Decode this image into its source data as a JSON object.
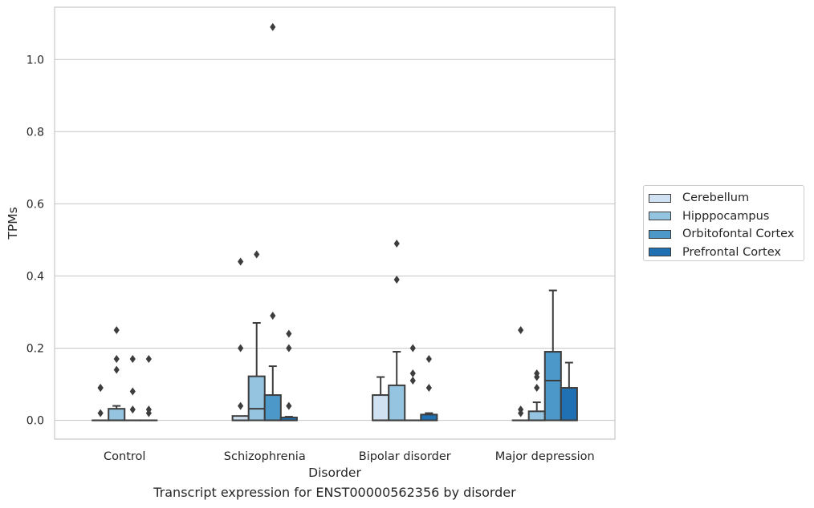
{
  "chart_data": {
    "type": "box",
    "title": "",
    "caption": "Transcript expression for ENST00000562356 by disorder",
    "xlabel": "Disorder",
    "ylabel": "TPMs",
    "ylim": [
      -0.052,
      1.145
    ],
    "yticks": [
      0.0,
      0.2,
      0.4,
      0.6,
      0.8,
      1.0
    ],
    "ytick_labels": [
      "0.0",
      "0.2",
      "0.4",
      "0.6",
      "0.8",
      "1.0"
    ],
    "grid": "horizontal",
    "legend_position": "right",
    "categories": [
      "Control",
      "Schizophrenia",
      "Bipolar disorder",
      "Major depression"
    ],
    "series": [
      {
        "name": "Cerebellum",
        "color": "#d0e1f2",
        "boxes": [
          {
            "q1": 0.0,
            "median": 0.0,
            "q3": 0.0,
            "whisker_low": 0.0,
            "whisker_high": 0.0,
            "outliers": [
              0.02,
              0.09,
              0.09
            ]
          },
          {
            "q1": 0.0,
            "median": 0.0,
            "q3": 0.012,
            "whisker_low": 0.0,
            "whisker_high": 0.012,
            "outliers": [
              0.04,
              0.2,
              0.44
            ]
          },
          {
            "q1": 0.0,
            "median": 0.0,
            "q3": 0.07,
            "whisker_low": 0.0,
            "whisker_high": 0.12,
            "outliers": []
          },
          {
            "q1": 0.0,
            "median": 0.0,
            "q3": 0.0,
            "whisker_low": 0.0,
            "whisker_high": 0.0,
            "outliers": [
              0.02,
              0.03,
              0.25
            ]
          }
        ]
      },
      {
        "name": "Hipppocampus",
        "color": "#94c4df",
        "boxes": [
          {
            "q1": 0.0,
            "median": 0.0,
            "q3": 0.032,
            "whisker_low": 0.0,
            "whisker_high": 0.04,
            "outliers": [
              0.14,
              0.17,
              0.25
            ]
          },
          {
            "q1": 0.0,
            "median": 0.032,
            "q3": 0.122,
            "whisker_low": 0.0,
            "whisker_high": 0.27,
            "outliers": [
              0.46
            ]
          },
          {
            "q1": 0.0,
            "median": 0.0,
            "q3": 0.097,
            "whisker_low": 0.0,
            "whisker_high": 0.19,
            "outliers": [
              0.39,
              0.49
            ]
          },
          {
            "q1": 0.0,
            "median": 0.0,
            "q3": 0.025,
            "whisker_low": 0.0,
            "whisker_high": 0.05,
            "outliers": [
              0.09,
              0.12,
              0.13
            ]
          }
        ]
      },
      {
        "name": "Orbitofontal Cortex",
        "color": "#4b98c9",
        "boxes": [
          {
            "q1": 0.0,
            "median": 0.0,
            "q3": 0.0,
            "whisker_low": 0.0,
            "whisker_high": 0.0,
            "outliers": [
              0.03,
              0.08,
              0.17
            ]
          },
          {
            "q1": 0.0,
            "median": 0.0,
            "q3": 0.07,
            "whisker_low": 0.0,
            "whisker_high": 0.15,
            "outliers": [
              0.29,
              1.09
            ]
          },
          {
            "q1": 0.0,
            "median": 0.0,
            "q3": 0.0,
            "whisker_low": 0.0,
            "whisker_high": 0.0,
            "outliers": [
              0.11,
              0.13,
              0.2
            ]
          },
          {
            "q1": 0.0,
            "median": 0.11,
            "q3": 0.19,
            "whisker_low": 0.0,
            "whisker_high": 0.36,
            "outliers": []
          }
        ]
      },
      {
        "name": "Prefrontal Cortex",
        "color": "#2070b4",
        "boxes": [
          {
            "q1": 0.0,
            "median": 0.0,
            "q3": 0.0,
            "whisker_low": 0.0,
            "whisker_high": 0.0,
            "outliers": [
              0.02,
              0.03,
              0.17
            ]
          },
          {
            "q1": 0.0,
            "median": 0.0,
            "q3": 0.008,
            "whisker_low": 0.0,
            "whisker_high": 0.01,
            "outliers": [
              0.04,
              0.2,
              0.24
            ]
          },
          {
            "q1": 0.0,
            "median": 0.0,
            "q3": 0.016,
            "whisker_low": 0.0,
            "whisker_high": 0.02,
            "outliers": [
              0.09,
              0.17
            ]
          },
          {
            "q1": 0.0,
            "median": 0.0,
            "q3": 0.09,
            "whisker_low": 0.0,
            "whisker_high": 0.16,
            "outliers": []
          }
        ]
      }
    ]
  }
}
